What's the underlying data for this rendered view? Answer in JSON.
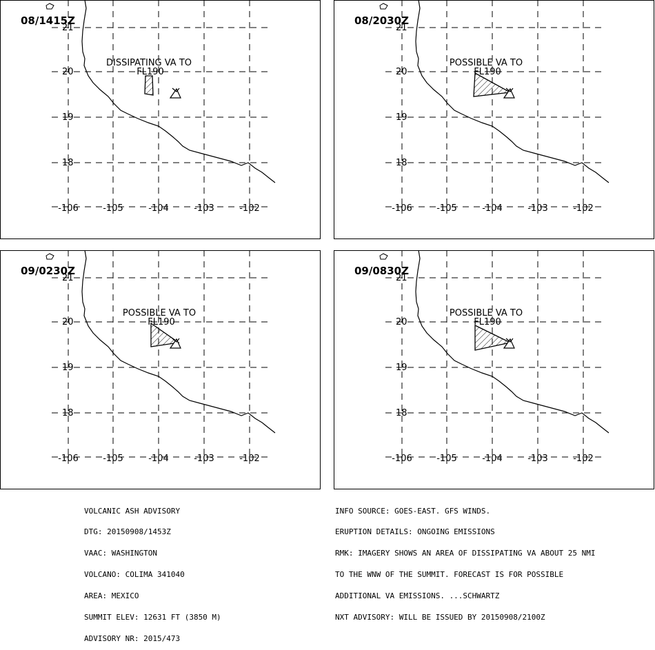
{
  "panels": [
    {
      "timestamp": "08/1415Z",
      "annotation_line1": "DISSIPATING VA TO",
      "annotation_line2": "FL190",
      "shape": "strip"
    },
    {
      "timestamp": "08/2030Z",
      "annotation_line1": "POSSIBLE  VA TO",
      "annotation_line2": "FL190",
      "shape": "triangle"
    },
    {
      "timestamp": "09/0230Z",
      "annotation_line1": "POSSIBLE  VA TO",
      "annotation_line2": "FL190",
      "shape": "triangle"
    },
    {
      "timestamp": "09/0830Z",
      "annotation_line1": "POSSIBLE  VA TO",
      "annotation_line2": "FL190",
      "shape": "triangle"
    }
  ],
  "axes": {
    "lon_labels": [
      "-106",
      "-105",
      "-104",
      "-103",
      "-102"
    ],
    "lat_labels": [
      "21",
      "20",
      "19",
      "18"
    ]
  },
  "advisory_left": {
    "lines": [
      "VOLCANIC ASH ADVISORY",
      "DTG: 20150908/1453Z",
      "VAAC: WASHINGTON",
      "VOLCANO: COLIMA 341040",
      "AREA: MEXICO",
      "SUMMIT ELEV: 12631 FT (3850 M)",
      "ADVISORY NR: 2015/473"
    ]
  },
  "advisory_right": {
    "lines": [
      "INFO SOURCE: GOES-EAST. GFS WINDS.",
      "ERUPTION DETAILS: ONGOING EMISSIONS",
      "RMK: IMAGERY SHOWS AN AREA OF DISSIPATING VA ABOUT 25 NMI",
      "TO THE WNW OF THE SUMMIT. FORECAST IS FOR POSSIBLE",
      "ADDITIONAL VA EMISSIONS. ...SCHWARTZ",
      "NXT ADVISORY: WILL BE ISSUED BY 20150908/2100Z"
    ]
  },
  "colors": {
    "line": "#000000",
    "background": "#ffffff"
  }
}
